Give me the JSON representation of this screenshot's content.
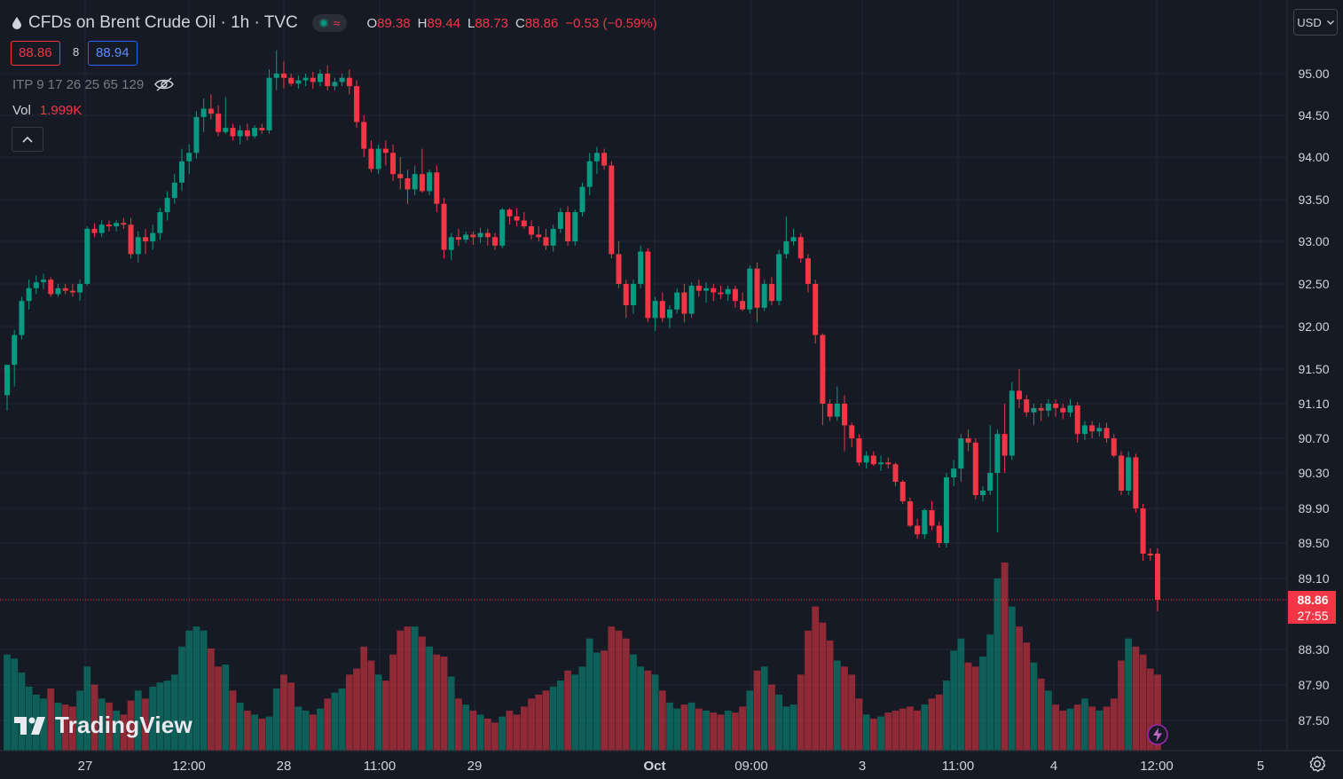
{
  "header": {
    "title": "CFDs on Brent Crude Oil · 1h · TVC",
    "ohlc": [
      {
        "k": "O",
        "v": "89.38"
      },
      {
        "k": "H",
        "v": "89.44"
      },
      {
        "k": "L",
        "v": "88.73"
      },
      {
        "k": "C",
        "v": "88.86"
      }
    ],
    "change": "−0.53 (−0.59%)"
  },
  "trade": {
    "sell": "88.86",
    "spread": "8",
    "buy": "88.94"
  },
  "indicators": {
    "itp": "ITP 9 17 26 25 65 129",
    "vol_label": "Vol",
    "vol_value": "1.999K"
  },
  "currency": "USD",
  "logo_text": "TradingView",
  "colors": {
    "up": "#089981",
    "down": "#f23645",
    "bg": "#161a25",
    "grid": "#232632",
    "text": "#d1d4dc"
  },
  "price_axis": {
    "ticks": [
      "95.00",
      "94.50",
      "94.00",
      "93.50",
      "93.00",
      "92.50",
      "92.00",
      "91.50",
      "91.10",
      "90.70",
      "90.30",
      "89.90",
      "89.50",
      "89.10",
      "88.30",
      "87.90",
      "87.50"
    ],
    "last_price": "88.86",
    "countdown": "27:55"
  },
  "time_axis": {
    "ticks": [
      "27",
      "12:00",
      "28",
      "11:00",
      "29",
      "Oct",
      "09:00",
      "3",
      "11:00",
      "4",
      "12:00",
      "5"
    ]
  },
  "chart_data": {
    "type": "candlestick",
    "symbol": "CFDs on Brent Crude Oil",
    "interval": "1h",
    "volume_label": "Vol",
    "candles": [
      {
        "o": 91.2,
        "h": 91.55,
        "l": 91.02,
        "c": 91.55,
        "v": 480
      },
      {
        "o": 91.55,
        "h": 91.96,
        "l": 91.3,
        "c": 91.9,
        "v": 460
      },
      {
        "o": 91.9,
        "h": 92.35,
        "l": 91.85,
        "c": 92.3,
        "v": 390
      },
      {
        "o": 92.3,
        "h": 92.55,
        "l": 92.2,
        "c": 92.45,
        "v": 320
      },
      {
        "o": 92.45,
        "h": 92.6,
        "l": 92.38,
        "c": 92.52,
        "v": 280
      },
      {
        "o": 92.52,
        "h": 92.62,
        "l": 92.44,
        "c": 92.55,
        "v": 260
      },
      {
        "o": 92.55,
        "h": 92.58,
        "l": 92.35,
        "c": 92.38,
        "v": 310
      },
      {
        "o": 92.38,
        "h": 92.5,
        "l": 92.35,
        "c": 92.45,
        "v": 240
      },
      {
        "o": 92.45,
        "h": 92.5,
        "l": 92.38,
        "c": 92.42,
        "v": 230
      },
      {
        "o": 92.42,
        "h": 92.5,
        "l": 92.35,
        "c": 92.4,
        "v": 220
      },
      {
        "o": 92.4,
        "h": 92.55,
        "l": 92.3,
        "c": 92.5,
        "v": 300
      },
      {
        "o": 92.5,
        "h": 93.18,
        "l": 92.48,
        "c": 93.15,
        "v": 420
      },
      {
        "o": 93.15,
        "h": 93.22,
        "l": 93.05,
        "c": 93.1,
        "v": 330
      },
      {
        "o": 93.1,
        "h": 93.25,
        "l": 93.05,
        "c": 93.2,
        "v": 260
      },
      {
        "o": 93.2,
        "h": 93.25,
        "l": 93.12,
        "c": 93.18,
        "v": 240
      },
      {
        "o": 93.18,
        "h": 93.25,
        "l": 93.12,
        "c": 93.22,
        "v": 200
      },
      {
        "o": 93.22,
        "h": 93.28,
        "l": 93.15,
        "c": 93.2,
        "v": 180
      },
      {
        "o": 93.2,
        "h": 93.28,
        "l": 92.8,
        "c": 92.85,
        "v": 250
      },
      {
        "o": 92.85,
        "h": 93.12,
        "l": 92.75,
        "c": 93.05,
        "v": 300
      },
      {
        "o": 93.05,
        "h": 93.15,
        "l": 92.85,
        "c": 93.0,
        "v": 260
      },
      {
        "o": 93.0,
        "h": 93.2,
        "l": 92.9,
        "c": 93.1,
        "v": 320
      },
      {
        "o": 93.1,
        "h": 93.4,
        "l": 93.02,
        "c": 93.35,
        "v": 340
      },
      {
        "o": 93.35,
        "h": 93.6,
        "l": 93.25,
        "c": 93.52,
        "v": 350
      },
      {
        "o": 93.52,
        "h": 93.8,
        "l": 93.45,
        "c": 93.7,
        "v": 380
      },
      {
        "o": 93.7,
        "h": 94.1,
        "l": 93.6,
        "c": 93.95,
        "v": 520
      },
      {
        "o": 93.95,
        "h": 94.15,
        "l": 93.8,
        "c": 94.05,
        "v": 600
      },
      {
        "o": 94.05,
        "h": 94.55,
        "l": 93.98,
        "c": 94.48,
        "v": 620
      },
      {
        "o": 94.48,
        "h": 94.7,
        "l": 94.3,
        "c": 94.58,
        "v": 600
      },
      {
        "o": 94.58,
        "h": 94.75,
        "l": 94.45,
        "c": 94.52,
        "v": 510
      },
      {
        "o": 94.52,
        "h": 94.62,
        "l": 94.25,
        "c": 94.3,
        "v": 420
      },
      {
        "o": 94.3,
        "h": 94.72,
        "l": 94.28,
        "c": 94.35,
        "v": 430
      },
      {
        "o": 94.35,
        "h": 94.4,
        "l": 94.2,
        "c": 94.25,
        "v": 300
      },
      {
        "o": 94.25,
        "h": 94.38,
        "l": 94.15,
        "c": 94.32,
        "v": 240
      },
      {
        "o": 94.32,
        "h": 94.4,
        "l": 94.2,
        "c": 94.25,
        "v": 200
      },
      {
        "o": 94.25,
        "h": 94.38,
        "l": 94.22,
        "c": 94.35,
        "v": 180
      },
      {
        "o": 94.35,
        "h": 94.4,
        "l": 94.28,
        "c": 94.32,
        "v": 160
      },
      {
        "o": 94.32,
        "h": 95.05,
        "l": 94.28,
        "c": 94.95,
        "v": 170
      },
      {
        "o": 94.95,
        "h": 95.28,
        "l": 94.8,
        "c": 95.0,
        "v": 310
      },
      {
        "o": 95.0,
        "h": 95.15,
        "l": 94.82,
        "c": 94.95,
        "v": 380
      },
      {
        "o": 94.95,
        "h": 95.0,
        "l": 94.85,
        "c": 94.88,
        "v": 340
      },
      {
        "o": 94.88,
        "h": 94.98,
        "l": 94.82,
        "c": 94.92,
        "v": 220
      },
      {
        "o": 94.92,
        "h": 95.0,
        "l": 94.85,
        "c": 94.95,
        "v": 200
      },
      {
        "o": 94.95,
        "h": 95.02,
        "l": 94.82,
        "c": 94.9,
        "v": 180
      },
      {
        "o": 94.9,
        "h": 95.05,
        "l": 94.85,
        "c": 95.0,
        "v": 210
      },
      {
        "o": 95.0,
        "h": 95.1,
        "l": 94.8,
        "c": 94.85,
        "v": 260
      },
      {
        "o": 94.85,
        "h": 94.95,
        "l": 94.8,
        "c": 94.9,
        "v": 290
      },
      {
        "o": 94.9,
        "h": 95.0,
        "l": 94.85,
        "c": 94.95,
        "v": 310
      },
      {
        "o": 94.95,
        "h": 95.05,
        "l": 94.75,
        "c": 94.85,
        "v": 380
      },
      {
        "o": 94.85,
        "h": 94.92,
        "l": 94.35,
        "c": 94.42,
        "v": 410
      },
      {
        "o": 94.42,
        "h": 94.5,
        "l": 94.0,
        "c": 94.1,
        "v": 520
      },
      {
        "o": 94.1,
        "h": 94.2,
        "l": 93.82,
        "c": 93.86,
        "v": 450
      },
      {
        "o": 93.86,
        "h": 94.15,
        "l": 93.8,
        "c": 94.1,
        "v": 380
      },
      {
        "o": 94.1,
        "h": 94.2,
        "l": 93.9,
        "c": 94.05,
        "v": 350
      },
      {
        "o": 94.05,
        "h": 94.15,
        "l": 93.72,
        "c": 93.8,
        "v": 480
      },
      {
        "o": 93.8,
        "h": 94.0,
        "l": 93.62,
        "c": 93.75,
        "v": 600
      },
      {
        "o": 93.75,
        "h": 93.85,
        "l": 93.45,
        "c": 93.62,
        "v": 620
      },
      {
        "o": 93.62,
        "h": 93.9,
        "l": 93.55,
        "c": 93.8,
        "v": 620
      },
      {
        "o": 93.8,
        "h": 94.1,
        "l": 93.58,
        "c": 93.6,
        "v": 570
      },
      {
        "o": 93.6,
        "h": 93.85,
        "l": 93.55,
        "c": 93.82,
        "v": 520
      },
      {
        "o": 93.82,
        "h": 93.9,
        "l": 93.35,
        "c": 93.45,
        "v": 480
      },
      {
        "o": 93.45,
        "h": 93.52,
        "l": 92.8,
        "c": 92.9,
        "v": 470
      },
      {
        "o": 92.9,
        "h": 93.1,
        "l": 92.78,
        "c": 93.05,
        "v": 370
      },
      {
        "o": 93.05,
        "h": 93.15,
        "l": 92.95,
        "c": 93.02,
        "v": 260
      },
      {
        "o": 93.02,
        "h": 93.12,
        "l": 92.98,
        "c": 93.08,
        "v": 230
      },
      {
        "o": 93.08,
        "h": 93.12,
        "l": 92.96,
        "c": 93.05,
        "v": 200
      },
      {
        "o": 93.05,
        "h": 93.16,
        "l": 92.98,
        "c": 93.1,
        "v": 180
      },
      {
        "o": 93.1,
        "h": 93.15,
        "l": 92.95,
        "c": 93.05,
        "v": 160
      },
      {
        "o": 93.05,
        "h": 93.1,
        "l": 92.9,
        "c": 92.95,
        "v": 140
      },
      {
        "o": 92.95,
        "h": 93.4,
        "l": 92.92,
        "c": 93.38,
        "v": 170
      },
      {
        "o": 93.38,
        "h": 93.4,
        "l": 93.2,
        "c": 93.3,
        "v": 200
      },
      {
        "o": 93.3,
        "h": 93.4,
        "l": 93.18,
        "c": 93.25,
        "v": 180
      },
      {
        "o": 93.25,
        "h": 93.35,
        "l": 93.15,
        "c": 93.18,
        "v": 220
      },
      {
        "o": 93.18,
        "h": 93.25,
        "l": 93.02,
        "c": 93.08,
        "v": 260
      },
      {
        "o": 93.08,
        "h": 93.18,
        "l": 93.0,
        "c": 93.05,
        "v": 280
      },
      {
        "o": 93.05,
        "h": 93.15,
        "l": 92.9,
        "c": 92.95,
        "v": 300
      },
      {
        "o": 92.95,
        "h": 93.2,
        "l": 92.88,
        "c": 93.15,
        "v": 320
      },
      {
        "o": 93.15,
        "h": 93.4,
        "l": 93.1,
        "c": 93.35,
        "v": 350
      },
      {
        "o": 93.35,
        "h": 93.42,
        "l": 92.95,
        "c": 93.0,
        "v": 400
      },
      {
        "o": 93.0,
        "h": 93.38,
        "l": 92.95,
        "c": 93.35,
        "v": 380
      },
      {
        "o": 93.35,
        "h": 93.7,
        "l": 93.3,
        "c": 93.65,
        "v": 420
      },
      {
        "o": 93.65,
        "h": 94.05,
        "l": 93.55,
        "c": 93.95,
        "v": 560
      },
      {
        "o": 93.95,
        "h": 94.12,
        "l": 93.8,
        "c": 94.05,
        "v": 490
      },
      {
        "o": 94.05,
        "h": 94.1,
        "l": 93.85,
        "c": 93.9,
        "v": 500
      },
      {
        "o": 93.9,
        "h": 93.95,
        "l": 92.8,
        "c": 92.85,
        "v": 620
      },
      {
        "o": 92.85,
        "h": 93.0,
        "l": 92.45,
        "c": 92.5,
        "v": 600
      },
      {
        "o": 92.5,
        "h": 92.55,
        "l": 92.1,
        "c": 92.25,
        "v": 560
      },
      {
        "o": 92.25,
        "h": 92.55,
        "l": 92.15,
        "c": 92.5,
        "v": 480
      },
      {
        "o": 92.5,
        "h": 92.95,
        "l": 92.45,
        "c": 92.88,
        "v": 420
      },
      {
        "o": 92.88,
        "h": 92.92,
        "l": 92.05,
        "c": 92.1,
        "v": 400
      },
      {
        "o": 92.1,
        "h": 92.35,
        "l": 91.95,
        "c": 92.3,
        "v": 380
      },
      {
        "o": 92.3,
        "h": 92.4,
        "l": 92.05,
        "c": 92.1,
        "v": 300
      },
      {
        "o": 92.1,
        "h": 92.25,
        "l": 91.98,
        "c": 92.2,
        "v": 240
      },
      {
        "o": 92.2,
        "h": 92.45,
        "l": 92.15,
        "c": 92.4,
        "v": 210
      },
      {
        "o": 92.4,
        "h": 92.5,
        "l": 92.05,
        "c": 92.15,
        "v": 230
      },
      {
        "o": 92.15,
        "h": 92.52,
        "l": 92.1,
        "c": 92.48,
        "v": 240
      },
      {
        "o": 92.48,
        "h": 92.55,
        "l": 92.35,
        "c": 92.42,
        "v": 210
      },
      {
        "o": 92.42,
        "h": 92.52,
        "l": 92.28,
        "c": 92.45,
        "v": 200
      },
      {
        "o": 92.45,
        "h": 92.5,
        "l": 92.3,
        "c": 92.4,
        "v": 190
      },
      {
        "o": 92.4,
        "h": 92.48,
        "l": 92.32,
        "c": 92.38,
        "v": 180
      },
      {
        "o": 92.38,
        "h": 92.48,
        "l": 92.3,
        "c": 92.44,
        "v": 200
      },
      {
        "o": 92.44,
        "h": 92.48,
        "l": 92.22,
        "c": 92.3,
        "v": 190
      },
      {
        "o": 92.3,
        "h": 92.4,
        "l": 92.18,
        "c": 92.2,
        "v": 220
      },
      {
        "o": 92.2,
        "h": 92.72,
        "l": 92.15,
        "c": 92.68,
        "v": 300
      },
      {
        "o": 92.68,
        "h": 92.75,
        "l": 92.05,
        "c": 92.22,
        "v": 400
      },
      {
        "o": 92.22,
        "h": 92.55,
        "l": 92.18,
        "c": 92.5,
        "v": 420
      },
      {
        "o": 92.5,
        "h": 92.58,
        "l": 92.25,
        "c": 92.3,
        "v": 330
      },
      {
        "o": 92.3,
        "h": 92.9,
        "l": 92.25,
        "c": 92.85,
        "v": 280
      },
      {
        "o": 92.85,
        "h": 93.3,
        "l": 92.8,
        "c": 93.0,
        "v": 220
      },
      {
        "o": 93.0,
        "h": 93.15,
        "l": 92.95,
        "c": 93.05,
        "v": 230
      },
      {
        "o": 93.05,
        "h": 93.1,
        "l": 92.75,
        "c": 92.8,
        "v": 380
      },
      {
        "o": 92.8,
        "h": 92.85,
        "l": 92.4,
        "c": 92.5,
        "v": 600
      },
      {
        "o": 92.5,
        "h": 92.55,
        "l": 91.8,
        "c": 91.9,
        "v": 720
      },
      {
        "o": 91.9,
        "h": 91.92,
        "l": 90.85,
        "c": 91.1,
        "v": 640
      },
      {
        "o": 91.1,
        "h": 91.15,
        "l": 90.9,
        "c": 90.95,
        "v": 550
      },
      {
        "o": 90.95,
        "h": 91.3,
        "l": 90.9,
        "c": 91.1,
        "v": 450
      },
      {
        "o": 91.1,
        "h": 91.2,
        "l": 90.55,
        "c": 90.85,
        "v": 420
      },
      {
        "o": 90.85,
        "h": 90.88,
        "l": 90.6,
        "c": 90.7,
        "v": 380
      },
      {
        "o": 90.7,
        "h": 90.75,
        "l": 90.38,
        "c": 90.42,
        "v": 260
      },
      {
        "o": 90.42,
        "h": 90.55,
        "l": 90.35,
        "c": 90.5,
        "v": 180
      },
      {
        "o": 90.5,
        "h": 90.55,
        "l": 90.38,
        "c": 90.4,
        "v": 160
      },
      {
        "o": 90.4,
        "h": 90.5,
        "l": 90.32,
        "c": 90.42,
        "v": 170
      },
      {
        "o": 90.42,
        "h": 90.48,
        "l": 90.35,
        "c": 90.4,
        "v": 190
      },
      {
        "o": 90.4,
        "h": 90.42,
        "l": 90.15,
        "c": 90.2,
        "v": 200
      },
      {
        "o": 90.2,
        "h": 90.22,
        "l": 89.95,
        "c": 89.98,
        "v": 210
      },
      {
        "o": 89.98,
        "h": 90.02,
        "l": 89.68,
        "c": 89.7,
        "v": 220
      },
      {
        "o": 89.7,
        "h": 89.78,
        "l": 89.55,
        "c": 89.6,
        "v": 200
      },
      {
        "o": 89.6,
        "h": 89.9,
        "l": 89.55,
        "c": 89.88,
        "v": 230
      },
      {
        "o": 89.88,
        "h": 89.98,
        "l": 89.65,
        "c": 89.7,
        "v": 260
      },
      {
        "o": 89.7,
        "h": 89.75,
        "l": 89.45,
        "c": 89.5,
        "v": 280
      },
      {
        "o": 89.5,
        "h": 90.3,
        "l": 89.45,
        "c": 90.25,
        "v": 350
      },
      {
        "o": 90.25,
        "h": 90.45,
        "l": 90.15,
        "c": 90.35,
        "v": 500
      },
      {
        "o": 90.35,
        "h": 90.75,
        "l": 90.2,
        "c": 90.7,
        "v": 560
      },
      {
        "o": 90.7,
        "h": 90.8,
        "l": 90.55,
        "c": 90.65,
        "v": 440
      },
      {
        "o": 90.65,
        "h": 90.7,
        "l": 90.0,
        "c": 90.05,
        "v": 420
      },
      {
        "o": 90.05,
        "h": 90.15,
        "l": 89.98,
        "c": 90.1,
        "v": 470
      },
      {
        "o": 90.1,
        "h": 90.85,
        "l": 90.05,
        "c": 90.3,
        "v": 580
      },
      {
        "o": 90.3,
        "h": 90.8,
        "l": 89.62,
        "c": 90.75,
        "v": 860
      },
      {
        "o": 90.75,
        "h": 91.1,
        "l": 90.3,
        "c": 90.5,
        "v": 940
      },
      {
        "o": 90.5,
        "h": 91.35,
        "l": 90.45,
        "c": 91.25,
        "v": 720
      },
      {
        "o": 91.25,
        "h": 91.5,
        "l": 91.05,
        "c": 91.15,
        "v": 620
      },
      {
        "o": 91.15,
        "h": 91.2,
        "l": 90.95,
        "c": 91.0,
        "v": 540
      },
      {
        "o": 91.0,
        "h": 91.1,
        "l": 90.85,
        "c": 91.05,
        "v": 440
      },
      {
        "o": 91.05,
        "h": 91.1,
        "l": 90.9,
        "c": 91.02,
        "v": 360
      },
      {
        "o": 91.02,
        "h": 91.15,
        "l": 90.95,
        "c": 91.1,
        "v": 300
      },
      {
        "o": 91.1,
        "h": 91.15,
        "l": 90.95,
        "c": 91.05,
        "v": 230
      },
      {
        "o": 91.05,
        "h": 91.1,
        "l": 90.92,
        "c": 91.0,
        "v": 200
      },
      {
        "o": 91.0,
        "h": 91.15,
        "l": 90.95,
        "c": 91.08,
        "v": 210
      },
      {
        "o": 91.08,
        "h": 91.12,
        "l": 90.65,
        "c": 90.75,
        "v": 230
      },
      {
        "o": 90.75,
        "h": 90.9,
        "l": 90.68,
        "c": 90.85,
        "v": 260
      },
      {
        "o": 90.85,
        "h": 90.9,
        "l": 90.7,
        "c": 90.78,
        "v": 220
      },
      {
        "o": 90.78,
        "h": 90.88,
        "l": 90.72,
        "c": 90.82,
        "v": 200
      },
      {
        "o": 90.82,
        "h": 90.88,
        "l": 90.65,
        "c": 90.7,
        "v": 220
      },
      {
        "o": 90.7,
        "h": 90.75,
        "l": 90.48,
        "c": 90.5,
        "v": 260
      },
      {
        "o": 90.5,
        "h": 90.55,
        "l": 90.05,
        "c": 90.1,
        "v": 450
      },
      {
        "o": 90.1,
        "h": 90.55,
        "l": 90.05,
        "c": 90.48,
        "v": 560
      },
      {
        "o": 90.48,
        "h": 90.52,
        "l": 89.85,
        "c": 89.9,
        "v": 520
      },
      {
        "o": 89.9,
        "h": 89.95,
        "l": 89.3,
        "c": 89.38,
        "v": 480
      },
      {
        "o": 89.38,
        "h": 89.44,
        "l": 89.3,
        "c": 89.36,
        "v": 410
      },
      {
        "o": 89.38,
        "h": 89.44,
        "l": 88.73,
        "c": 88.86,
        "v": 380
      }
    ]
  }
}
